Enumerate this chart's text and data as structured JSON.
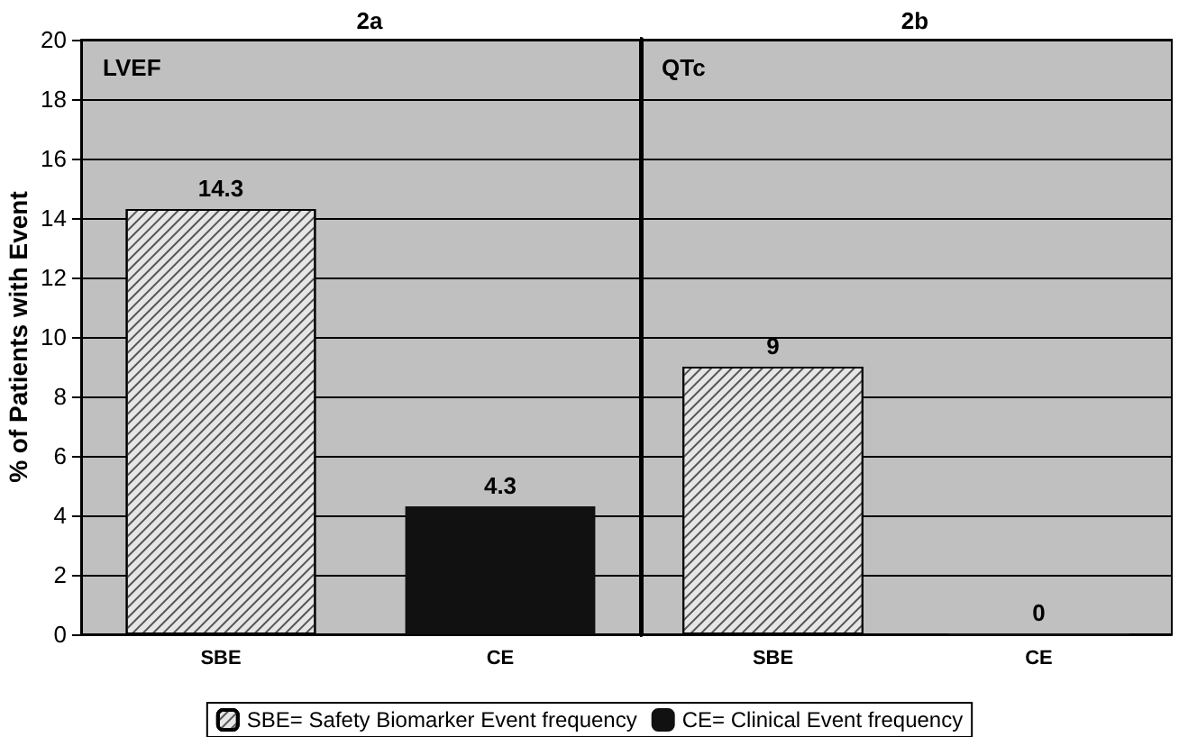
{
  "chart_data": [
    {
      "type": "bar",
      "title": "2a",
      "annotations": [
        "LVEF"
      ],
      "ylabel": "% of Patients with Event",
      "categories": [
        "SBE",
        "CE"
      ],
      "stacked": true,
      "series": [
        {
          "name": "SBE= Safety Biomarker Event frequency",
          "color": "#e6e6e6",
          "values": [
            14.3,
            null
          ]
        },
        {
          "name": "CE= Clinical Event frequency",
          "color": "#111111",
          "values": [
            null,
            4.3
          ]
        }
      ],
      "data_labels": true,
      "ylim": [
        0,
        20
      ],
      "yticks": [
        0,
        2,
        4,
        6,
        8,
        10,
        12,
        14,
        16,
        18,
        20
      ],
      "grid": "y",
      "legend": "bottom"
    },
    {
      "type": "bar",
      "title": "2b",
      "annotations": [
        "QTc"
      ],
      "categories": [
        "SBE",
        "CE"
      ],
      "stacked": true,
      "series": [
        {
          "color": "#e6e6e6",
          "values": [
            9,
            null
          ]
        },
        {
          "color": "#111111",
          "values": [
            null,
            0
          ]
        }
      ],
      "data_labels": true,
      "ylim": [
        0,
        20
      ],
      "yticks": [
        0,
        2,
        4,
        6,
        8,
        10,
        12,
        14,
        16,
        18,
        20
      ],
      "grid": "y",
      "tick_labels": "x"
    }
  ]
}
